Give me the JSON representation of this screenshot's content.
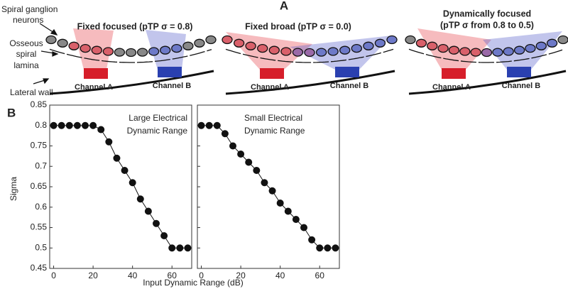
{
  "panel_a": {
    "label": "A",
    "annotations": {
      "neurons": [
        "Spiral ganglion",
        "neurons"
      ],
      "lamina": [
        "Osseous",
        "spiral",
        "lamina"
      ],
      "wall": "Lateral wall"
    },
    "diagrams": [
      {
        "title": [
          "Fixed focused (pTP σ = 0.8)"
        ],
        "channels": [
          "Channel A",
          "Channel B"
        ]
      },
      {
        "title": [
          "Fixed broad (pTP σ = 0.0)"
        ],
        "channels": [
          "Channel A",
          "Channel B"
        ]
      },
      {
        "title": [
          "Dynamically focused",
          "(pTP σ from 0.8 to 0.5)"
        ],
        "channels": [
          "Channel A",
          "Channel B"
        ]
      }
    ]
  },
  "panel_b": {
    "label": "B",
    "xlabel": "Input Dynamic Range (dB)",
    "ylabel": "Sigma"
  },
  "chart_data": [
    {
      "type": "line",
      "annotation": [
        "Large Electrical",
        "Dynamic Range"
      ],
      "color": "#111",
      "x": [
        0,
        4,
        8,
        12,
        16,
        20,
        24,
        28,
        32,
        36,
        40,
        44,
        48,
        52,
        56,
        60,
        64,
        68
      ],
      "values": [
        0.8,
        0.8,
        0.8,
        0.8,
        0.8,
        0.8,
        0.79,
        0.76,
        0.72,
        0.69,
        0.66,
        0.62,
        0.59,
        0.56,
        0.53,
        0.5,
        0.5,
        0.5
      ],
      "xlim": [
        -2,
        70
      ],
      "ylim": [
        0.45,
        0.85
      ],
      "xticks": [
        0,
        20,
        40,
        60
      ],
      "yticks": [
        0.45,
        0.5,
        0.55,
        0.6,
        0.65,
        0.7,
        0.75,
        0.8,
        0.85
      ]
    },
    {
      "type": "line",
      "annotation": [
        "Small Electrical",
        "Dynamic Range"
      ],
      "color": "#111",
      "x": [
        0,
        4,
        8,
        12,
        16,
        20,
        24,
        28,
        32,
        36,
        40,
        44,
        48,
        52,
        56,
        60,
        64,
        68
      ],
      "values": [
        0.8,
        0.8,
        0.8,
        0.78,
        0.75,
        0.73,
        0.71,
        0.69,
        0.66,
        0.64,
        0.61,
        0.59,
        0.57,
        0.55,
        0.52,
        0.5,
        0.5,
        0.5
      ],
      "xlim": [
        -2,
        70
      ],
      "ylim": [
        0.45,
        0.85
      ],
      "xticks": [
        0,
        20,
        40,
        60
      ],
      "yticks": [
        0.45,
        0.5,
        0.55,
        0.6,
        0.65,
        0.7,
        0.75,
        0.8,
        0.85
      ]
    }
  ]
}
